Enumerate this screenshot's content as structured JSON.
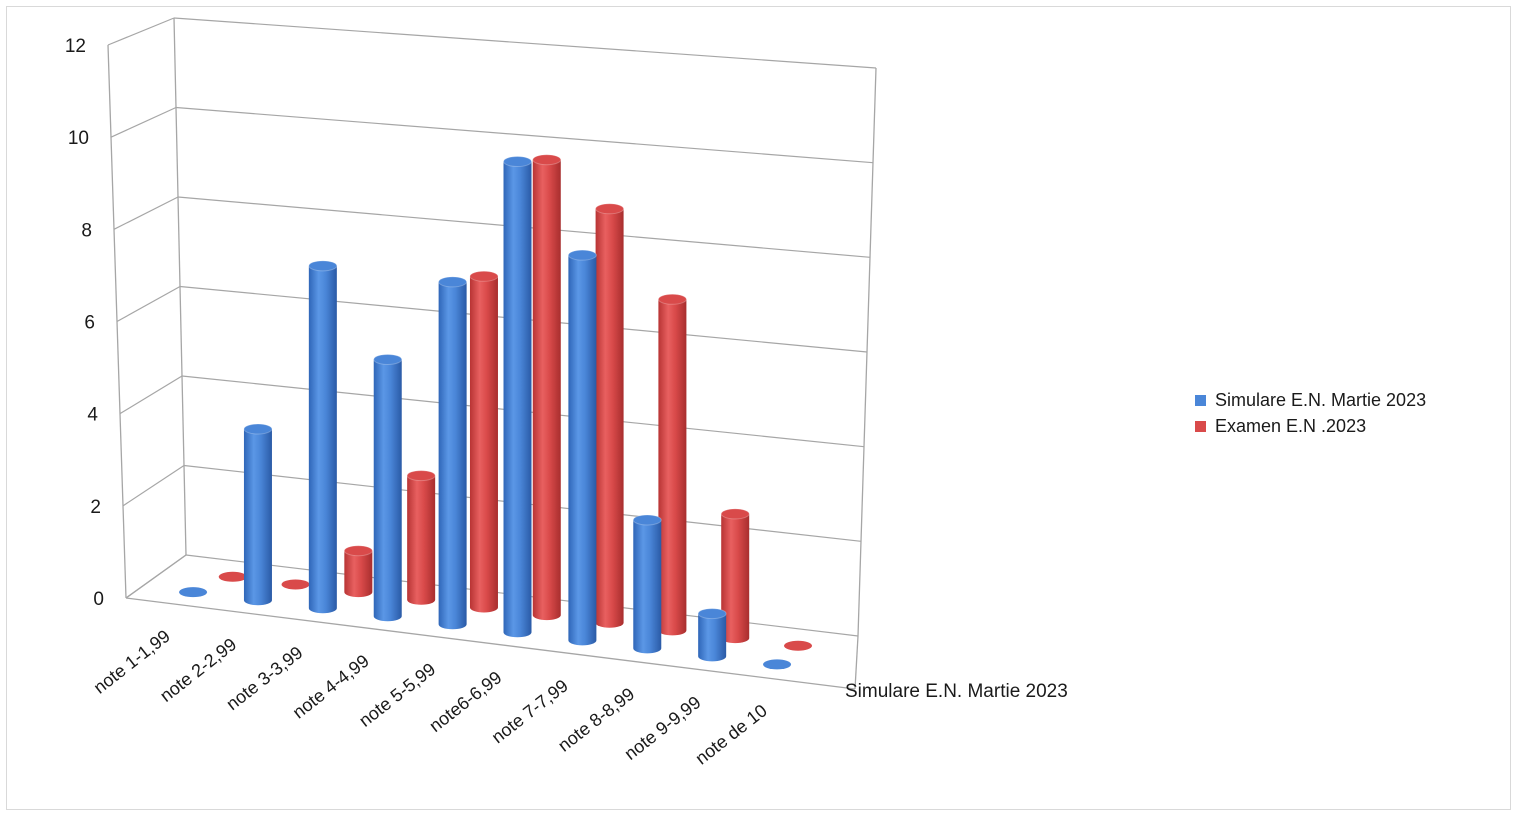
{
  "chart_data": {
    "type": "bar",
    "style": "3d-cylinder",
    "categories": [
      "note 1-1,99",
      "note 2-2,99",
      "note 3-3,99",
      "note 4-4,99",
      "note 5-5,99",
      "note6-6,99",
      "note 7-7,99",
      "note 8-8,99",
      "note 9-9,99",
      "note de 10"
    ],
    "series": [
      {
        "name": "Simulare E.N.  Martie  2023",
        "color": "#4a86d8",
        "values": [
          0,
          4,
          8,
          6,
          8,
          11,
          9,
          3,
          1,
          0
        ]
      },
      {
        "name": "Examen E.N .2023",
        "color": "#d94a4a",
        "values": [
          0,
          0,
          1,
          3,
          8,
          11,
          10,
          8,
          3,
          0
        ]
      }
    ],
    "depth_axis_label": "Simulare E.N.  Martie  2023",
    "ylim": [
      0,
      12
    ],
    "yticks": [
      "0",
      "2",
      "4",
      "6",
      "8",
      "10",
      "12"
    ],
    "grid": true,
    "legend_position": "right"
  }
}
